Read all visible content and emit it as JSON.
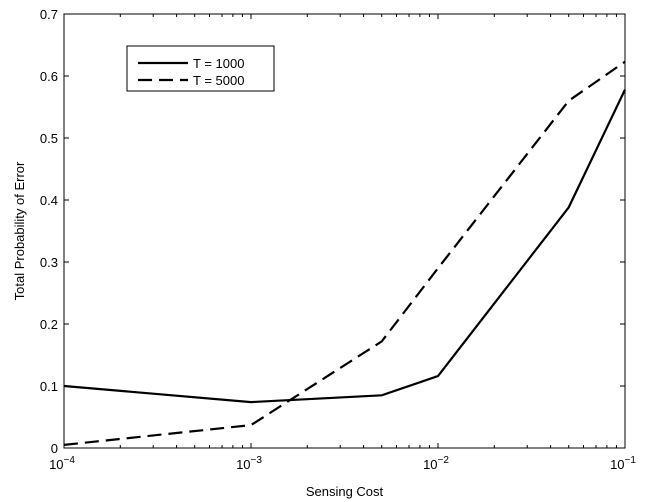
{
  "chart_data": {
    "type": "line",
    "title": "",
    "xlabel": "Sensing Cost",
    "ylabel": "Total Probability of Error",
    "xscale": "log",
    "xlim": [
      0.0001,
      0.1
    ],
    "ylim": [
      0,
      0.7
    ],
    "xticks": [
      0.0001,
      0.001,
      0.01,
      0.1
    ],
    "xtick_labels": [
      {
        "base": "10",
        "exp": "−4"
      },
      {
        "base": "10",
        "exp": "−3"
      },
      {
        "base": "10",
        "exp": "−2"
      },
      {
        "base": "10",
        "exp": "−1"
      }
    ],
    "yticks": [
      0,
      0.1,
      0.2,
      0.3,
      0.4,
      0.5,
      0.6,
      0.7
    ],
    "ytick_labels": [
      "0",
      "0.1",
      "0.2",
      "0.3",
      "0.4",
      "0.5",
      "0.6",
      "0.7"
    ],
    "grid": false,
    "legend_position": "top-left",
    "series": [
      {
        "name": "T = 1000",
        "style": "solid",
        "color": "#000000",
        "x": [
          0.0001,
          0.001,
          0.005,
          0.01,
          0.05,
          0.1
        ],
        "y": [
          0.1,
          0.074,
          0.085,
          0.116,
          0.388,
          0.578
        ]
      },
      {
        "name": "T = 5000",
        "style": "dashed",
        "color": "#000000",
        "x": [
          0.0001,
          0.001,
          0.005,
          0.01,
          0.05,
          0.1
        ],
        "y": [
          0.005,
          0.037,
          0.172,
          0.29,
          0.56,
          0.623
        ]
      }
    ]
  }
}
